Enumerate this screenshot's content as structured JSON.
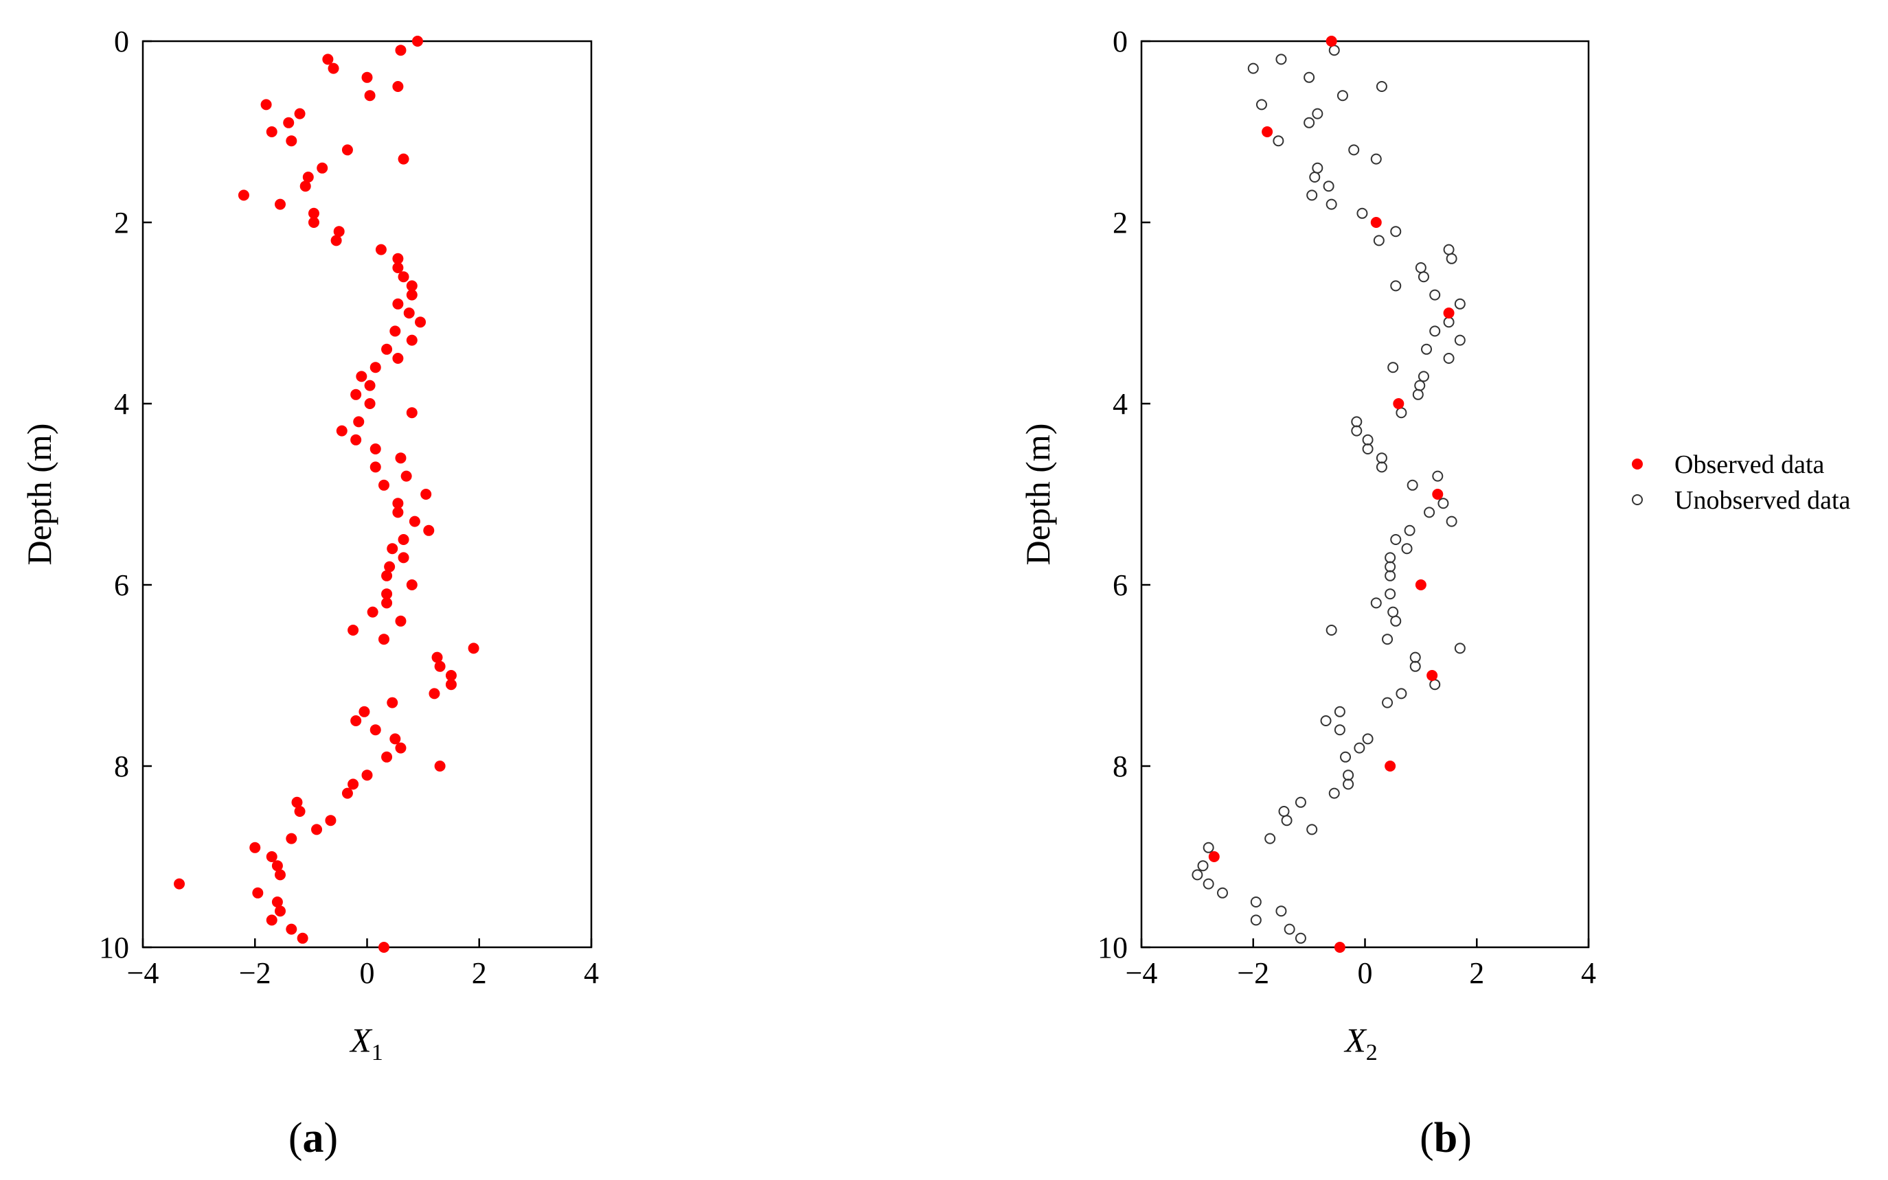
{
  "figure": {
    "panels": [
      {
        "id": "a",
        "label_open": "(",
        "label_letter": "a",
        "label_close": ")"
      },
      {
        "id": "b",
        "label_open": "(",
        "label_letter": "b",
        "label_close": ")"
      }
    ]
  },
  "colors": {
    "observed": "#ff0000",
    "unobserved_stroke": "#333333",
    "axis": "#000000"
  },
  "legend": {
    "observed": "Observed data",
    "unobserved": "Unobserved data"
  },
  "chart_data": [
    {
      "type": "scatter",
      "panel": "a",
      "xlabel": "X",
      "xlabel_sub": "1",
      "ylabel": "Depth (m)",
      "xlim": [
        -4,
        4
      ],
      "ylim": [
        0,
        10
      ],
      "y_inverted": true,
      "xticks": [
        -4,
        -2,
        0,
        2,
        4
      ],
      "yticks": [
        0,
        2,
        4,
        6,
        8,
        10
      ],
      "series": [
        {
          "name": "X1",
          "style": "filled",
          "points": [
            [
              0.9,
              0.0
            ],
            [
              0.6,
              0.1
            ],
            [
              -0.7,
              0.2
            ],
            [
              -0.6,
              0.3
            ],
            [
              0.0,
              0.4
            ],
            [
              0.55,
              0.5
            ],
            [
              0.05,
              0.6
            ],
            [
              -1.8,
              0.7
            ],
            [
              -1.2,
              0.8
            ],
            [
              -1.4,
              0.9
            ],
            [
              -1.7,
              1.0
            ],
            [
              -1.35,
              1.1
            ],
            [
              -0.35,
              1.2
            ],
            [
              0.65,
              1.3
            ],
            [
              -0.8,
              1.4
            ],
            [
              -1.05,
              1.5
            ],
            [
              -1.1,
              1.6
            ],
            [
              -2.2,
              1.7
            ],
            [
              -1.55,
              1.8
            ],
            [
              -0.95,
              1.9
            ],
            [
              -0.95,
              2.0
            ],
            [
              -0.5,
              2.1
            ],
            [
              -0.55,
              2.2
            ],
            [
              0.25,
              2.3
            ],
            [
              0.55,
              2.4
            ],
            [
              0.55,
              2.5
            ],
            [
              0.65,
              2.6
            ],
            [
              0.8,
              2.7
            ],
            [
              0.8,
              2.8
            ],
            [
              0.55,
              2.9
            ],
            [
              0.75,
              3.0
            ],
            [
              0.95,
              3.1
            ],
            [
              0.5,
              3.2
            ],
            [
              0.8,
              3.3
            ],
            [
              0.35,
              3.4
            ],
            [
              0.55,
              3.5
            ],
            [
              0.15,
              3.6
            ],
            [
              -0.1,
              3.7
            ],
            [
              0.05,
              3.8
            ],
            [
              -0.2,
              3.9
            ],
            [
              0.05,
              4.0
            ],
            [
              0.8,
              4.1
            ],
            [
              -0.15,
              4.2
            ],
            [
              -0.45,
              4.3
            ],
            [
              -0.2,
              4.4
            ],
            [
              0.15,
              4.5
            ],
            [
              0.6,
              4.6
            ],
            [
              0.15,
              4.7
            ],
            [
              0.7,
              4.8
            ],
            [
              0.3,
              4.9
            ],
            [
              1.05,
              5.0
            ],
            [
              0.55,
              5.1
            ],
            [
              0.55,
              5.2
            ],
            [
              0.85,
              5.3
            ],
            [
              1.1,
              5.4
            ],
            [
              0.65,
              5.5
            ],
            [
              0.45,
              5.6
            ],
            [
              0.65,
              5.7
            ],
            [
              0.4,
              5.8
            ],
            [
              0.35,
              5.9
            ],
            [
              0.8,
              6.0
            ],
            [
              0.35,
              6.1
            ],
            [
              0.35,
              6.2
            ],
            [
              0.1,
              6.3
            ],
            [
              0.6,
              6.4
            ],
            [
              -0.25,
              6.5
            ],
            [
              0.3,
              6.6
            ],
            [
              1.9,
              6.7
            ],
            [
              1.25,
              6.8
            ],
            [
              1.3,
              6.9
            ],
            [
              1.5,
              7.0
            ],
            [
              1.5,
              7.1
            ],
            [
              1.2,
              7.2
            ],
            [
              0.45,
              7.3
            ],
            [
              -0.05,
              7.4
            ],
            [
              -0.2,
              7.5
            ],
            [
              0.15,
              7.6
            ],
            [
              0.5,
              7.7
            ],
            [
              0.6,
              7.8
            ],
            [
              0.35,
              7.9
            ],
            [
              1.3,
              8.0
            ],
            [
              0.0,
              8.1
            ],
            [
              -0.25,
              8.2
            ],
            [
              -0.35,
              8.3
            ],
            [
              -1.25,
              8.4
            ],
            [
              -1.2,
              8.5
            ],
            [
              -0.65,
              8.6
            ],
            [
              -0.9,
              8.7
            ],
            [
              -1.35,
              8.8
            ],
            [
              -2.0,
              8.9
            ],
            [
              -1.7,
              9.0
            ],
            [
              -1.6,
              9.1
            ],
            [
              -1.55,
              9.2
            ],
            [
              -3.35,
              9.3
            ],
            [
              -1.95,
              9.4
            ],
            [
              -1.6,
              9.5
            ],
            [
              -1.55,
              9.6
            ],
            [
              -1.7,
              9.7
            ],
            [
              -1.35,
              9.8
            ],
            [
              -1.15,
              9.9
            ],
            [
              0.3,
              10.0
            ]
          ]
        }
      ]
    },
    {
      "type": "scatter",
      "panel": "b",
      "xlabel": "X",
      "xlabel_sub": "2",
      "ylabel": "Depth (m)",
      "xlim": [
        -4,
        4
      ],
      "ylim": [
        0,
        10
      ],
      "y_inverted": true,
      "xticks": [
        -4,
        -2,
        0,
        2,
        4
      ],
      "yticks": [
        0,
        2,
        4,
        6,
        8,
        10
      ],
      "legend_position": "right",
      "series": [
        {
          "name": "Unobserved data",
          "style": "open",
          "points": [
            [
              -0.55,
              0.1
            ],
            [
              -1.5,
              0.2
            ],
            [
              -2.0,
              0.3
            ],
            [
              -1.0,
              0.4
            ],
            [
              0.3,
              0.5
            ],
            [
              -0.4,
              0.6
            ],
            [
              -1.85,
              0.7
            ],
            [
              -0.85,
              0.8
            ],
            [
              -1.0,
              0.9
            ],
            [
              -1.55,
              1.1
            ],
            [
              -0.2,
              1.2
            ],
            [
              0.2,
              1.3
            ],
            [
              -0.85,
              1.4
            ],
            [
              -0.9,
              1.5
            ],
            [
              -0.65,
              1.6
            ],
            [
              -0.95,
              1.7
            ],
            [
              -0.6,
              1.8
            ],
            [
              -0.05,
              1.9
            ],
            [
              0.55,
              2.1
            ],
            [
              0.25,
              2.2
            ],
            [
              1.5,
              2.3
            ],
            [
              1.55,
              2.4
            ],
            [
              1.0,
              2.5
            ],
            [
              1.05,
              2.6
            ],
            [
              0.55,
              2.7
            ],
            [
              1.25,
              2.8
            ],
            [
              1.7,
              2.9
            ],
            [
              1.5,
              3.1
            ],
            [
              1.25,
              3.2
            ],
            [
              1.7,
              3.3
            ],
            [
              1.1,
              3.4
            ],
            [
              1.5,
              3.5
            ],
            [
              0.5,
              3.6
            ],
            [
              1.05,
              3.7
            ],
            [
              0.98,
              3.8
            ],
            [
              0.95,
              3.9
            ],
            [
              0.65,
              4.1
            ],
            [
              -0.15,
              4.2
            ],
            [
              -0.15,
              4.3
            ],
            [
              0.05,
              4.4
            ],
            [
              0.05,
              4.5
            ],
            [
              0.3,
              4.6
            ],
            [
              0.3,
              4.7
            ],
            [
              1.3,
              4.8
            ],
            [
              0.85,
              4.9
            ],
            [
              1.4,
              5.1
            ],
            [
              1.15,
              5.2
            ],
            [
              1.55,
              5.3
            ],
            [
              0.8,
              5.4
            ],
            [
              0.55,
              5.5
            ],
            [
              0.75,
              5.6
            ],
            [
              0.45,
              5.7
            ],
            [
              0.45,
              5.8
            ],
            [
              0.45,
              5.9
            ],
            [
              0.45,
              6.1
            ],
            [
              0.2,
              6.2
            ],
            [
              0.5,
              6.3
            ],
            [
              0.55,
              6.4
            ],
            [
              -0.6,
              6.5
            ],
            [
              0.4,
              6.6
            ],
            [
              1.7,
              6.7
            ],
            [
              0.9,
              6.8
            ],
            [
              0.9,
              6.9
            ],
            [
              1.25,
              7.1
            ],
            [
              0.65,
              7.2
            ],
            [
              0.4,
              7.3
            ],
            [
              -0.45,
              7.4
            ],
            [
              -0.7,
              7.5
            ],
            [
              -0.45,
              7.6
            ],
            [
              0.05,
              7.7
            ],
            [
              -0.1,
              7.8
            ],
            [
              -0.35,
              7.9
            ],
            [
              -0.3,
              8.1
            ],
            [
              -0.3,
              8.2
            ],
            [
              -0.55,
              8.3
            ],
            [
              -1.15,
              8.4
            ],
            [
              -1.45,
              8.5
            ],
            [
              -1.4,
              8.6
            ],
            [
              -0.95,
              8.7
            ],
            [
              -1.7,
              8.8
            ],
            [
              -2.8,
              8.9
            ],
            [
              -2.9,
              9.1
            ],
            [
              -3.0,
              9.2
            ],
            [
              -2.8,
              9.3
            ],
            [
              -2.55,
              9.4
            ],
            [
              -1.95,
              9.5
            ],
            [
              -1.5,
              9.6
            ],
            [
              -1.95,
              9.7
            ],
            [
              -1.35,
              9.8
            ],
            [
              -1.15,
              9.9
            ]
          ]
        },
        {
          "name": "Observed data",
          "style": "filled",
          "points": [
            [
              -0.6,
              0.0
            ],
            [
              -1.75,
              1.0
            ],
            [
              0.2,
              2.0
            ],
            [
              1.5,
              3.0
            ],
            [
              0.6,
              4.0
            ],
            [
              1.3,
              5.0
            ],
            [
              1.0,
              6.0
            ],
            [
              1.2,
              7.0
            ],
            [
              0.45,
              8.0
            ],
            [
              -2.7,
              9.0
            ],
            [
              -0.45,
              10.0
            ]
          ]
        }
      ]
    }
  ]
}
